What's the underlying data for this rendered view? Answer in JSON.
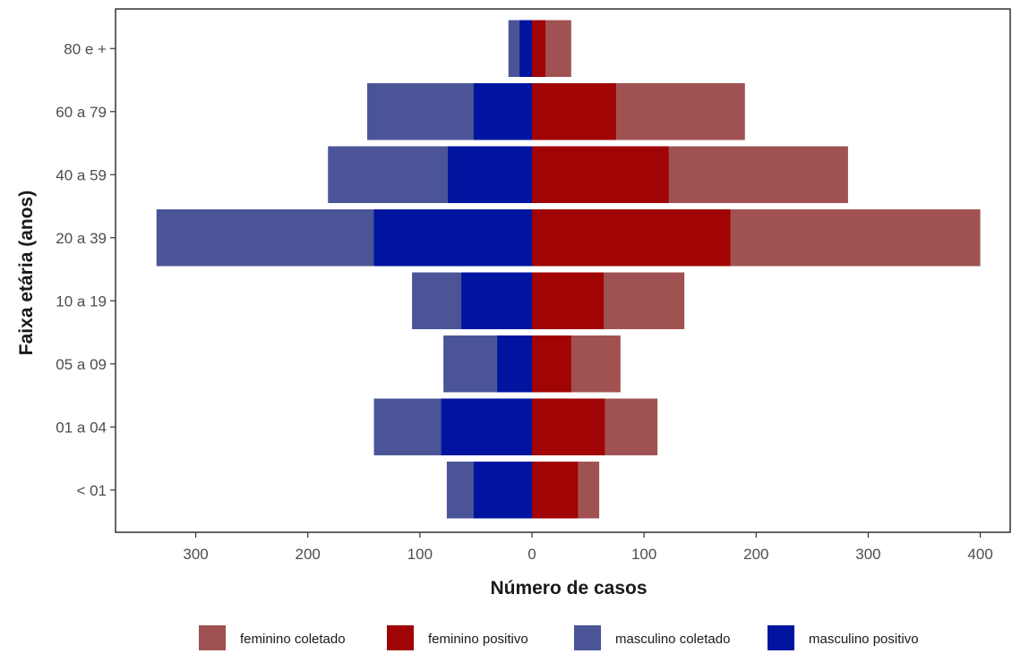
{
  "chart_data": {
    "type": "bar",
    "orientation": "horizontal",
    "layout": "population-pyramid",
    "xlabel": "Número de casos",
    "ylabel": "Faixa etária (anos)",
    "categories": [
      "< 01",
      "01 a 04",
      "05 a 09",
      "10 a 19",
      "20 a 39",
      "40 a 59",
      "60 a 79",
      "80 e +"
    ],
    "x_ticks": [
      {
        "value": -300,
        "label": "300"
      },
      {
        "value": -200,
        "label": "200"
      },
      {
        "value": -100,
        "label": "100"
      },
      {
        "value": 0,
        "label": "0"
      },
      {
        "value": 100,
        "label": "100"
      },
      {
        "value": 200,
        "label": "200"
      },
      {
        "value": 300,
        "label": "300"
      },
      {
        "value": 400,
        "label": "400"
      }
    ],
    "xlim": [
      -335,
      428
    ],
    "series": [
      {
        "name": "feminino coletado",
        "side": "right",
        "color": "#A05252",
        "values": [
          60,
          112,
          79,
          136,
          400,
          282,
          190,
          35
        ]
      },
      {
        "name": "feminino positivo",
        "side": "right",
        "color": "#A00404",
        "values": [
          41,
          65,
          35,
          64,
          177,
          122,
          75,
          12
        ]
      },
      {
        "name": "masculino coletado",
        "side": "left",
        "color": "#4A5497",
        "values": [
          76,
          141,
          79,
          107,
          335,
          182,
          147,
          21
        ]
      },
      {
        "name": "masculino positivo",
        "side": "left",
        "color": "#0014A0",
        "values": [
          52,
          81,
          31,
          63,
          141,
          75,
          52,
          11
        ]
      }
    ],
    "legend": {
      "position": "bottom",
      "items": [
        "feminino coletado",
        "feminino positivo",
        "masculino coletado",
        "masculino positivo"
      ]
    },
    "grid": false
  }
}
